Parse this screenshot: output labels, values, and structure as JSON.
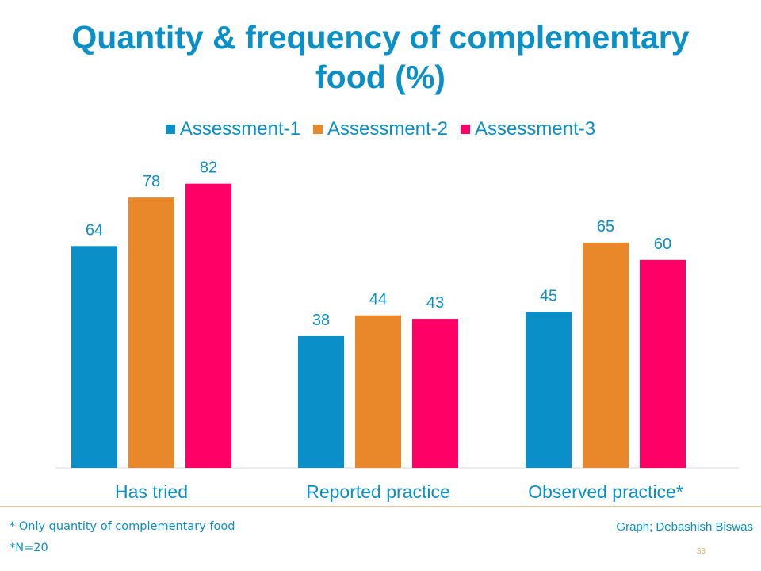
{
  "slide": {
    "title_line1": "Quantity & frequency of complementary",
    "title_line2": "food (%)",
    "note1": "* Only quantity of complementary food",
    "note2": "*N=20",
    "credit": "Graph; Debashish Biswas",
    "page_number": "33"
  },
  "colors": {
    "title": "#0a8fc7",
    "accent_line": "#e6c69a",
    "page_number": "#e0b06a"
  },
  "chart_data": {
    "type": "bar",
    "title": "Quantity & frequency of complementary food (%)",
    "categories": [
      "Has tried",
      "Reported practice",
      "Observed practice*"
    ],
    "series": [
      {
        "name": "Assessment-1",
        "color": "#0b8fc8",
        "values": [
          64,
          38,
          45
        ]
      },
      {
        "name": "Assessment-2",
        "color": "#e8882a",
        "values": [
          78,
          44,
          65
        ]
      },
      {
        "name": "Assessment-3",
        "color": "#ff0066",
        "values": [
          82,
          43,
          60
        ]
      }
    ],
    "ylim": [
      0,
      100
    ],
    "grid": false,
    "legend_position": "top",
    "data_labels": true
  }
}
